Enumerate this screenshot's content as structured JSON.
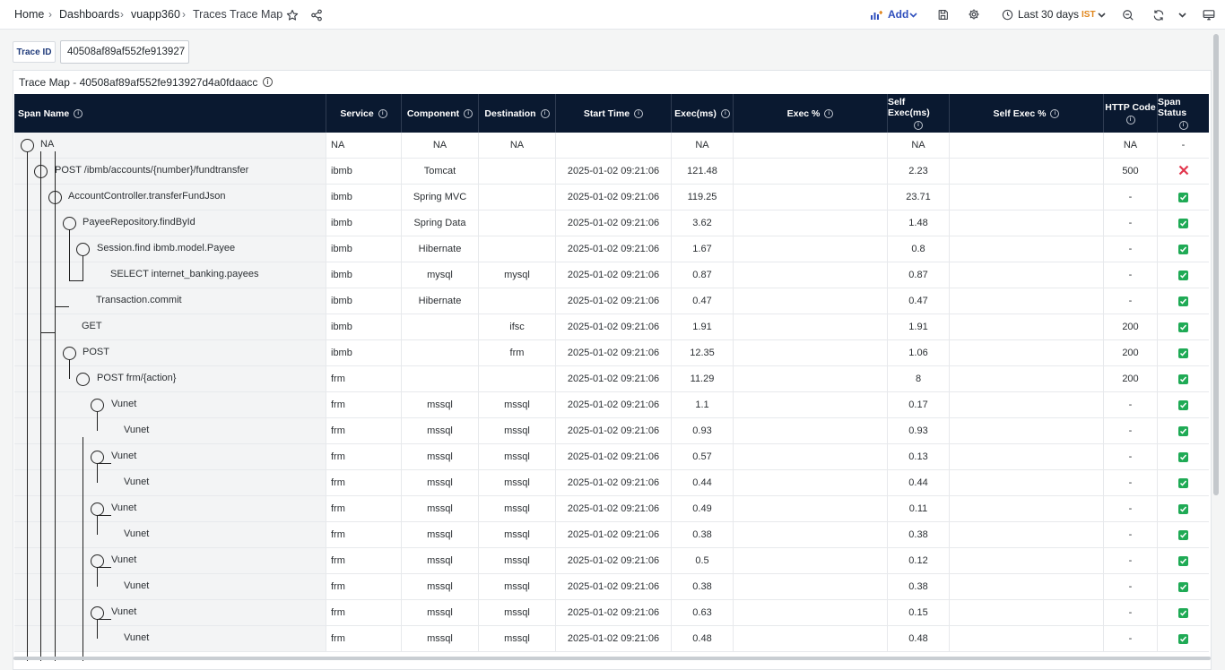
{
  "breadcrumb": {
    "home": "Home",
    "dashboards": "Dashboards",
    "folder": "vuapp360",
    "page": "Traces Trace Map"
  },
  "toolbar": {
    "add": "Add",
    "time_range": "Last 30 days",
    "timezone": "IST"
  },
  "trace_id": {
    "label": "Trace ID",
    "value": "40508af89af552fe913927"
  },
  "panel": {
    "title": "Trace Map - 40508af89af552fe913927d4a0fdaacc"
  },
  "columns": [
    "Span Name",
    "Service",
    "Component",
    "Destination",
    "Start Time",
    "Exec(ms)",
    "Exec %",
    "Self Exec(ms)",
    "Self Exec %",
    "HTTP Code",
    "Span Status"
  ],
  "rows": [
    {
      "name": "NA",
      "service": "NA",
      "component": "NA",
      "destination": "NA",
      "start": "",
      "exec": "NA",
      "self_exec": "NA",
      "http": "NA",
      "status": "-"
    },
    {
      "name": "POST /ibmb/accounts/{number}/fundtransfer",
      "service": "ibmb",
      "component": "Tomcat",
      "destination": "",
      "start": "2025-01-02 09:21:06",
      "exec": "121.48",
      "self_exec": "2.23",
      "http": "500",
      "status": "error"
    },
    {
      "name": "AccountController.transferFundJson",
      "service": "ibmb",
      "component": "Spring MVC",
      "destination": "",
      "start": "2025-01-02 09:21:06",
      "exec": "119.25",
      "self_exec": "23.71",
      "http": "-",
      "status": "ok"
    },
    {
      "name": "PayeeRepository.findById",
      "service": "ibmb",
      "component": "Spring Data",
      "destination": "",
      "start": "2025-01-02 09:21:06",
      "exec": "3.62",
      "self_exec": "1.48",
      "http": "-",
      "status": "ok"
    },
    {
      "name": "Session.find ibmb.model.Payee",
      "service": "ibmb",
      "component": "Hibernate",
      "destination": "",
      "start": "2025-01-02 09:21:06",
      "exec": "1.67",
      "self_exec": "0.8",
      "http": "-",
      "status": "ok"
    },
    {
      "name": "SELECT internet_banking.payees",
      "service": "ibmb",
      "component": "mysql",
      "destination": "mysql",
      "start": "2025-01-02 09:21:06",
      "exec": "0.87",
      "self_exec": "0.87",
      "http": "-",
      "status": "ok"
    },
    {
      "name": "Transaction.commit",
      "service": "ibmb",
      "component": "Hibernate",
      "destination": "",
      "start": "2025-01-02 09:21:06",
      "exec": "0.47",
      "self_exec": "0.47",
      "http": "-",
      "status": "ok"
    },
    {
      "name": "GET",
      "service": "ibmb",
      "component": "",
      "destination": "ifsc",
      "start": "2025-01-02 09:21:06",
      "exec": "1.91",
      "self_exec": "1.91",
      "http": "200",
      "status": "ok"
    },
    {
      "name": "POST",
      "service": "ibmb",
      "component": "",
      "destination": "frm",
      "start": "2025-01-02 09:21:06",
      "exec": "12.35",
      "self_exec": "1.06",
      "http": "200",
      "status": "ok"
    },
    {
      "name": "POST frm/{action}",
      "service": "frm",
      "component": "",
      "destination": "",
      "start": "2025-01-02 09:21:06",
      "exec": "11.29",
      "self_exec": "8",
      "http": "200",
      "status": "ok"
    },
    {
      "name": "Vunet",
      "service": "frm",
      "component": "mssql",
      "destination": "mssql",
      "start": "2025-01-02 09:21:06",
      "exec": "1.1",
      "self_exec": "0.17",
      "http": "-",
      "status": "ok"
    },
    {
      "name": "Vunet",
      "service": "frm",
      "component": "mssql",
      "destination": "mssql",
      "start": "2025-01-02 09:21:06",
      "exec": "0.93",
      "self_exec": "0.93",
      "http": "-",
      "status": "ok"
    },
    {
      "name": "Vunet",
      "service": "frm",
      "component": "mssql",
      "destination": "mssql",
      "start": "2025-01-02 09:21:06",
      "exec": "0.57",
      "self_exec": "0.13",
      "http": "-",
      "status": "ok"
    },
    {
      "name": "Vunet",
      "service": "frm",
      "component": "mssql",
      "destination": "mssql",
      "start": "2025-01-02 09:21:06",
      "exec": "0.44",
      "self_exec": "0.44",
      "http": "-",
      "status": "ok"
    },
    {
      "name": "Vunet",
      "service": "frm",
      "component": "mssql",
      "destination": "mssql",
      "start": "2025-01-02 09:21:06",
      "exec": "0.49",
      "self_exec": "0.11",
      "http": "-",
      "status": "ok"
    },
    {
      "name": "Vunet",
      "service": "frm",
      "component": "mssql",
      "destination": "mssql",
      "start": "2025-01-02 09:21:06",
      "exec": "0.38",
      "self_exec": "0.38",
      "http": "-",
      "status": "ok"
    },
    {
      "name": "Vunet",
      "service": "frm",
      "component": "mssql",
      "destination": "mssql",
      "start": "2025-01-02 09:21:06",
      "exec": "0.5",
      "self_exec": "0.12",
      "http": "-",
      "status": "ok"
    },
    {
      "name": "Vunet",
      "service": "frm",
      "component": "mssql",
      "destination": "mssql",
      "start": "2025-01-02 09:21:06",
      "exec": "0.38",
      "self_exec": "0.38",
      "http": "-",
      "status": "ok"
    },
    {
      "name": "Vunet",
      "service": "frm",
      "component": "mssql",
      "destination": "mssql",
      "start": "2025-01-02 09:21:06",
      "exec": "0.63",
      "self_exec": "0.15",
      "http": "-",
      "status": "ok"
    },
    {
      "name": "Vunet",
      "service": "frm",
      "component": "mssql",
      "destination": "mssql",
      "start": "2025-01-02 09:21:06",
      "exec": "0.48",
      "self_exec": "0.48",
      "http": "-",
      "status": "ok"
    }
  ]
}
